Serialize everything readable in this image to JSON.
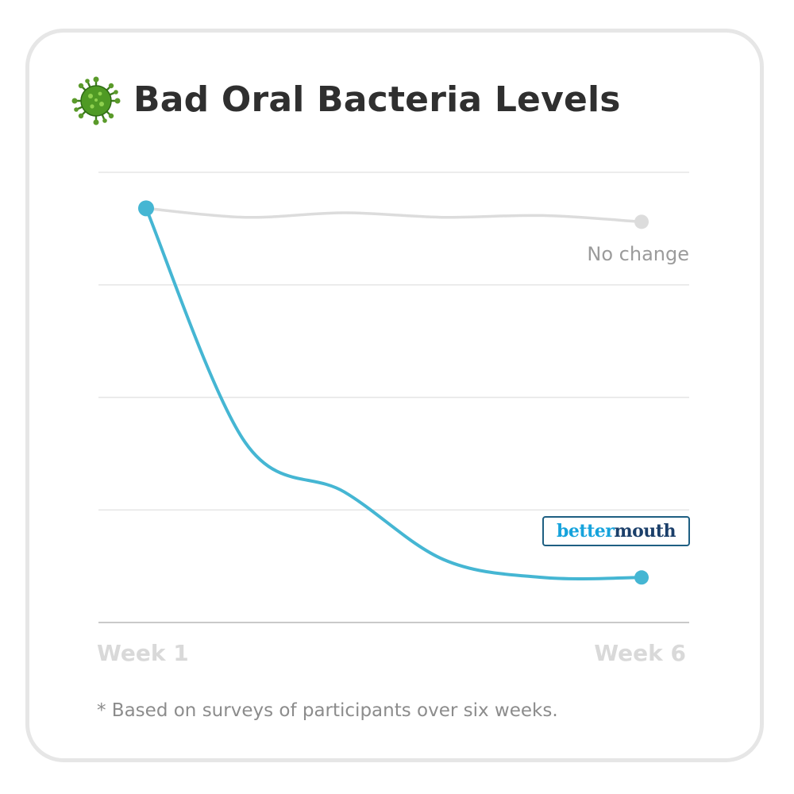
{
  "title": "Bad Oral Bacteria Levels",
  "footnote": "* Based on surveys of participants over six weeks.",
  "icons": {
    "title_icon": "virus-icon"
  },
  "colors": {
    "bettermouth_line": "#45b6d3",
    "control_line": "#dcdcdc",
    "gridline": "#e6e6e6",
    "title": "#2f2f2f",
    "brand_blue": "#16a3dc",
    "brand_navy": "#1b3f6a"
  },
  "chart_data": {
    "type": "line",
    "x": [
      1,
      2,
      3,
      4,
      5,
      6
    ],
    "x_tick_labels": [
      "Week 1",
      "Week 6"
    ],
    "xlabel": "",
    "ylabel": "",
    "ylim": [
      0,
      5
    ],
    "grid": true,
    "series": [
      {
        "name": "No change",
        "values": [
          4.6,
          4.5,
          4.55,
          4.5,
          4.52,
          4.45
        ],
        "color": "#dcdcdc"
      },
      {
        "name": "bettermouth",
        "name_parts": [
          "better",
          "mouth"
        ],
        "values": [
          4.6,
          2.0,
          1.45,
          0.7,
          0.5,
          0.5
        ],
        "color": "#45b6d3"
      }
    ]
  }
}
